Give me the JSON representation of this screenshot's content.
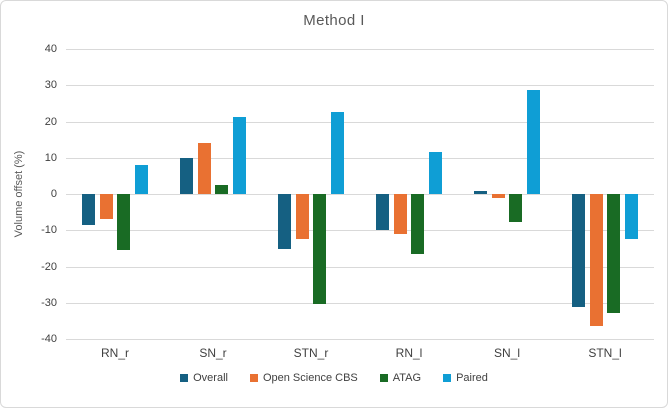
{
  "chart_data": {
    "type": "bar",
    "title": "Method I",
    "ylabel": "Volume offset (%)",
    "xlabel": "",
    "categories": [
      "RN_r",
      "SN_r",
      "STN_r",
      "RN_l",
      "SN_l",
      "STN_l"
    ],
    "series": [
      {
        "name": "Overall",
        "color": "#156082",
        "values": [
          -8.5,
          9.8,
          -15.2,
          -9.8,
          0.7,
          -31.1
        ]
      },
      {
        "name": "Open Science CBS",
        "color": "#E97132",
        "values": [
          -6.8,
          14.0,
          -12.3,
          -11.0,
          -1.1,
          -36.4
        ]
      },
      {
        "name": "ATAG",
        "color": "#196B24",
        "values": [
          -15.4,
          2.4,
          -30.3,
          -16.5,
          -7.8,
          -32.7
        ]
      },
      {
        "name": "Paired",
        "color": "#0F9ED5",
        "values": [
          8.0,
          21.2,
          22.7,
          11.5,
          28.6,
          -12.3
        ]
      }
    ],
    "ylim": [
      -40,
      40
    ],
    "ytick_step": 10,
    "grid": true,
    "legend_position": "bottom",
    "styles": {
      "grid_color": "#D9D9D9",
      "border_color": "#D9D9D9",
      "title_color": "#595959",
      "axis_label_color": "#404040",
      "background": "#FFFFFF"
    }
  }
}
